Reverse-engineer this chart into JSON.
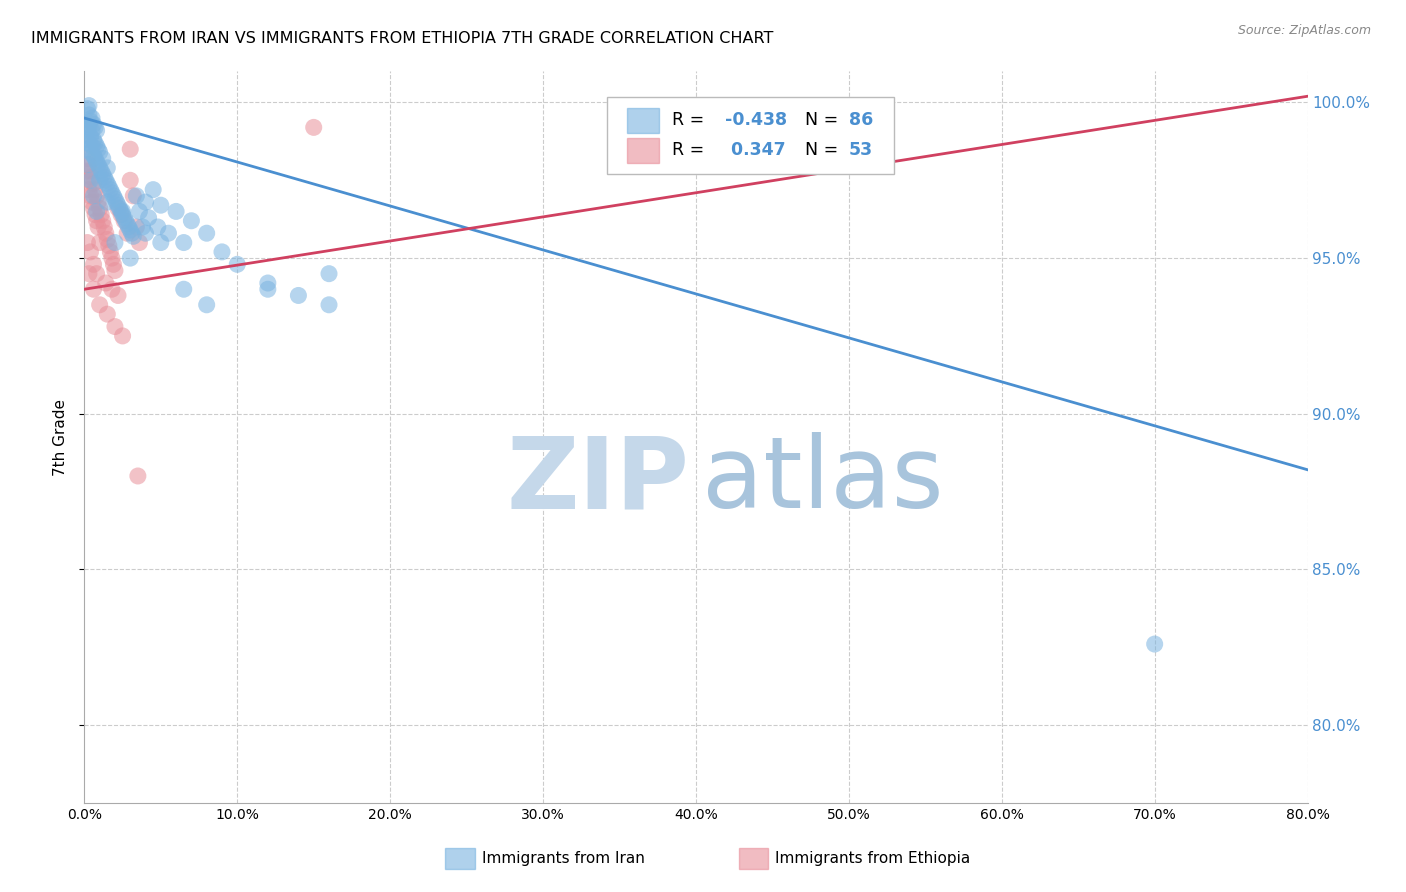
{
  "title": "IMMIGRANTS FROM IRAN VS IMMIGRANTS FROM ETHIOPIA 7TH GRADE CORRELATION CHART",
  "source": "Source: ZipAtlas.com",
  "ylabel": "7th Grade",
  "yaxis_values": [
    1.0,
    0.95,
    0.9,
    0.85,
    0.8
  ],
  "xaxis_ticks": [
    0.0,
    0.1,
    0.2,
    0.3,
    0.4,
    0.5,
    0.6,
    0.7,
    0.8
  ],
  "xlim": [
    0.0,
    0.8
  ],
  "ylim": [
    0.775,
    1.01
  ],
  "iran_R": -0.438,
  "iran_N": 86,
  "ethiopia_R": 0.347,
  "ethiopia_N": 53,
  "iran_color": "#7ab3e0",
  "ethiopia_color": "#e8909a",
  "iran_line_color": "#4a8fd0",
  "ethiopia_line_color": "#d04060",
  "iran_scatter_x": [
    0.001,
    0.001,
    0.002,
    0.002,
    0.002,
    0.003,
    0.003,
    0.003,
    0.003,
    0.004,
    0.004,
    0.004,
    0.005,
    0.005,
    0.005,
    0.006,
    0.006,
    0.006,
    0.007,
    0.007,
    0.007,
    0.008,
    0.008,
    0.008,
    0.009,
    0.009,
    0.01,
    0.01,
    0.011,
    0.012,
    0.012,
    0.013,
    0.014,
    0.015,
    0.015,
    0.016,
    0.017,
    0.018,
    0.019,
    0.02,
    0.021,
    0.022,
    0.023,
    0.024,
    0.025,
    0.026,
    0.027,
    0.028,
    0.029,
    0.03,
    0.031,
    0.032,
    0.034,
    0.036,
    0.038,
    0.04,
    0.042,
    0.045,
    0.048,
    0.05,
    0.055,
    0.06,
    0.065,
    0.07,
    0.08,
    0.09,
    0.1,
    0.12,
    0.14,
    0.16,
    0.002,
    0.004,
    0.006,
    0.008,
    0.01,
    0.015,
    0.02,
    0.025,
    0.03,
    0.04,
    0.05,
    0.065,
    0.08,
    0.12,
    0.16,
    0.7
  ],
  "iran_scatter_y": [
    0.993,
    0.988,
    0.985,
    0.991,
    0.998,
    0.987,
    0.992,
    0.996,
    0.999,
    0.984,
    0.989,
    0.994,
    0.986,
    0.991,
    0.995,
    0.983,
    0.988,
    0.993,
    0.982,
    0.987,
    0.992,
    0.981,
    0.986,
    0.991,
    0.98,
    0.985,
    0.979,
    0.984,
    0.978,
    0.977,
    0.982,
    0.976,
    0.975,
    0.974,
    0.979,
    0.973,
    0.972,
    0.971,
    0.97,
    0.969,
    0.968,
    0.967,
    0.966,
    0.965,
    0.964,
    0.963,
    0.962,
    0.961,
    0.96,
    0.959,
    0.958,
    0.957,
    0.97,
    0.965,
    0.96,
    0.968,
    0.963,
    0.972,
    0.96,
    0.967,
    0.958,
    0.965,
    0.955,
    0.962,
    0.958,
    0.952,
    0.948,
    0.942,
    0.938,
    0.945,
    0.98,
    0.975,
    0.97,
    0.965,
    0.975,
    0.968,
    0.955,
    0.965,
    0.95,
    0.958,
    0.955,
    0.94,
    0.935,
    0.94,
    0.935,
    0.826
  ],
  "ethiopia_scatter_x": [
    0.001,
    0.002,
    0.002,
    0.003,
    0.003,
    0.004,
    0.004,
    0.005,
    0.005,
    0.006,
    0.006,
    0.007,
    0.007,
    0.008,
    0.008,
    0.009,
    0.009,
    0.01,
    0.011,
    0.012,
    0.013,
    0.014,
    0.015,
    0.016,
    0.017,
    0.018,
    0.019,
    0.02,
    0.022,
    0.024,
    0.026,
    0.028,
    0.03,
    0.032,
    0.034,
    0.036,
    0.002,
    0.004,
    0.006,
    0.008,
    0.01,
    0.014,
    0.018,
    0.022,
    0.003,
    0.006,
    0.01,
    0.015,
    0.02,
    0.025,
    0.03,
    0.035,
    0.15
  ],
  "ethiopia_scatter_y": [
    0.978,
    0.982,
    0.975,
    0.98,
    0.972,
    0.978,
    0.97,
    0.976,
    0.968,
    0.974,
    0.966,
    0.972,
    0.964,
    0.97,
    0.962,
    0.968,
    0.96,
    0.966,
    0.964,
    0.962,
    0.96,
    0.958,
    0.956,
    0.954,
    0.952,
    0.95,
    0.948,
    0.946,
    0.966,
    0.964,
    0.962,
    0.958,
    0.975,
    0.97,
    0.96,
    0.955,
    0.955,
    0.952,
    0.948,
    0.945,
    0.955,
    0.942,
    0.94,
    0.938,
    0.945,
    0.94,
    0.935,
    0.932,
    0.928,
    0.925,
    0.985,
    0.88,
    0.992
  ],
  "watermark_zip_color": "#c5d8ea",
  "watermark_atlas_color": "#a8c4dc",
  "background_color": "#ffffff",
  "grid_color": "#cccccc"
}
